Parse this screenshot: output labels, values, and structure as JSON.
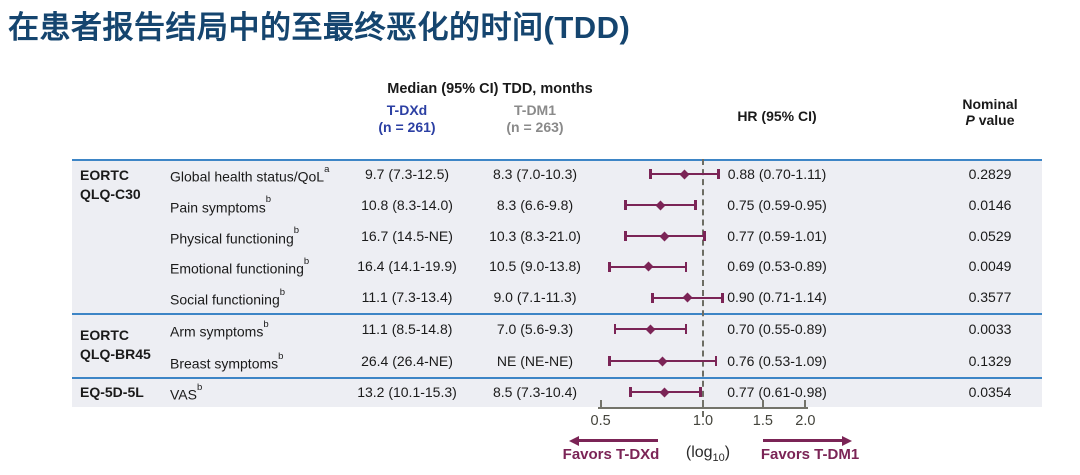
{
  "title": "在患者报告结局中的至最终恶化的时间(TDD)",
  "table": {
    "median_header": "Median (95% CI) TDD, months",
    "columns": {
      "tdxd_name": "T-DXd",
      "tdxd_n": "(n = 261)",
      "tdm1_name": "T-DM1",
      "tdm1_n": "(n = 263)",
      "hr_header": "HR (95% CI)",
      "p_header_line1": "Nominal",
      "p_header_italic": "P",
      "p_header_rest": " value"
    },
    "groups": [
      {
        "label_lines": [
          "EORTC",
          "QLQ-C30"
        ],
        "rows": [
          {
            "measure": "Global health status/QoL",
            "sup": "a",
            "tdxd": "9.7 (7.3-12.5)",
            "tdm1": "8.3 (7.0-10.3)",
            "hr_text": "0.88 (0.70-1.11)",
            "p": "0.2829",
            "hr": 0.88,
            "lo": 0.7,
            "hi": 1.11
          },
          {
            "measure": "Pain symptoms",
            "sup": "b",
            "tdxd": "10.8 (8.3-14.0)",
            "tdm1": "8.3 (6.6-9.8)",
            "hr_text": "0.75 (0.59-0.95)",
            "p": "0.0146",
            "hr": 0.75,
            "lo": 0.59,
            "hi": 0.95
          },
          {
            "measure": "Physical functioning",
            "sup": "b",
            "tdxd": "16.7 (14.5-NE)",
            "tdm1": "10.3 (8.3-21.0)",
            "hr_text": "0.77 (0.59-1.01)",
            "p": "0.0529",
            "hr": 0.77,
            "lo": 0.59,
            "hi": 1.01
          },
          {
            "measure": "Emotional functioning",
            "sup": "b",
            "tdxd": "16.4 (14.1-19.9)",
            "tdm1": "10.5 (9.0-13.8)",
            "hr_text": "0.69 (0.53-0.89)",
            "p": "0.0049",
            "hr": 0.69,
            "lo": 0.53,
            "hi": 0.89
          },
          {
            "measure": "Social functioning",
            "sup": "b",
            "tdxd": "11.1 (7.3-13.4)",
            "tdm1": "9.0 (7.1-11.3)",
            "hr_text": "0.90 (0.71-1.14)",
            "p": "0.3577",
            "hr": 0.9,
            "lo": 0.71,
            "hi": 1.14
          }
        ]
      },
      {
        "label_lines": [
          "EORTC",
          "QLQ-BR45"
        ],
        "rows": [
          {
            "measure": "Arm symptoms",
            "sup": "b",
            "tdxd": "11.1 (8.5-14.8)",
            "tdm1": "7.0 (5.6-9.3)",
            "hr_text": "0.70 (0.55-0.89)",
            "p": "0.0033",
            "hr": 0.7,
            "lo": 0.55,
            "hi": 0.89
          },
          {
            "measure": "Breast symptoms",
            "sup": "b",
            "tdxd": "26.4 (26.4-NE)",
            "tdm1": "NE (NE-NE)",
            "hr_text": "0.76 (0.53-1.09)",
            "p": "0.1329",
            "hr": 0.76,
            "lo": 0.53,
            "hi": 1.09
          }
        ]
      },
      {
        "label_lines": [
          "EQ-5D-5L"
        ],
        "rows": [
          {
            "measure": "VAS",
            "sup": "b",
            "tdxd": "13.2 (10.1-15.3)",
            "tdm1": "8.5 (7.3-10.4)",
            "hr_text": "0.77 (0.61-0.98)",
            "p": "0.0354",
            "hr": 0.77,
            "lo": 0.61,
            "hi": 0.98
          }
        ]
      }
    ]
  },
  "axis": {
    "tick_values": [
      0.5,
      1.0,
      1.5,
      2.0
    ],
    "tick_labels": [
      "0.5",
      "1.0",
      "1.5",
      "2.0"
    ],
    "scale_pre": "(log",
    "scale_sub": "10",
    "scale_post": ")",
    "favors_left": "Favors T-DXd",
    "favors_right": "Favors T-DM1"
  },
  "colors": {
    "title": "#15456f",
    "separator_blue": "#3d85c6",
    "row_bg": "#edeef3",
    "tdxd_blue": "#2b3fa3",
    "tdm1_gray": "#8a8a8a",
    "forest_maroon": "#7b2456",
    "dashed_gray": "#6d6d64",
    "axis_gray": "#73736a"
  },
  "chart_data": {
    "type": "scatter",
    "subtype": "forest-plot",
    "title": "在患者报告结局中的至最终恶化的时间(TDD)",
    "xlabel": "HR (95% CI), log10 scale",
    "x_ticks": [
      0.5,
      1.0,
      1.5,
      2.0
    ],
    "x_scale": "log10",
    "reference_line_x": 1.0,
    "categories": [
      "Global health status/QoL",
      "Pain symptoms",
      "Physical functioning",
      "Emotional functioning",
      "Social functioning",
      "Arm symptoms",
      "Breast symptoms",
      "VAS"
    ],
    "series": [
      {
        "name": "HR",
        "values": [
          0.88,
          0.75,
          0.77,
          0.69,
          0.9,
          0.7,
          0.76,
          0.77
        ]
      },
      {
        "name": "CI low",
        "values": [
          0.7,
          0.59,
          0.59,
          0.53,
          0.71,
          0.55,
          0.53,
          0.61
        ]
      },
      {
        "name": "CI high",
        "values": [
          1.11,
          0.95,
          1.01,
          0.89,
          1.14,
          0.89,
          1.09,
          0.98
        ]
      }
    ],
    "annotations": [
      "Favors T-DXd",
      "Favors T-DM1"
    ],
    "group_spans": {
      "EORTC QLQ-C30": [
        0,
        4
      ],
      "EORTC QLQ-BR45": [
        5,
        6
      ],
      "EQ-5D-5L": [
        7,
        7
      ]
    }
  }
}
